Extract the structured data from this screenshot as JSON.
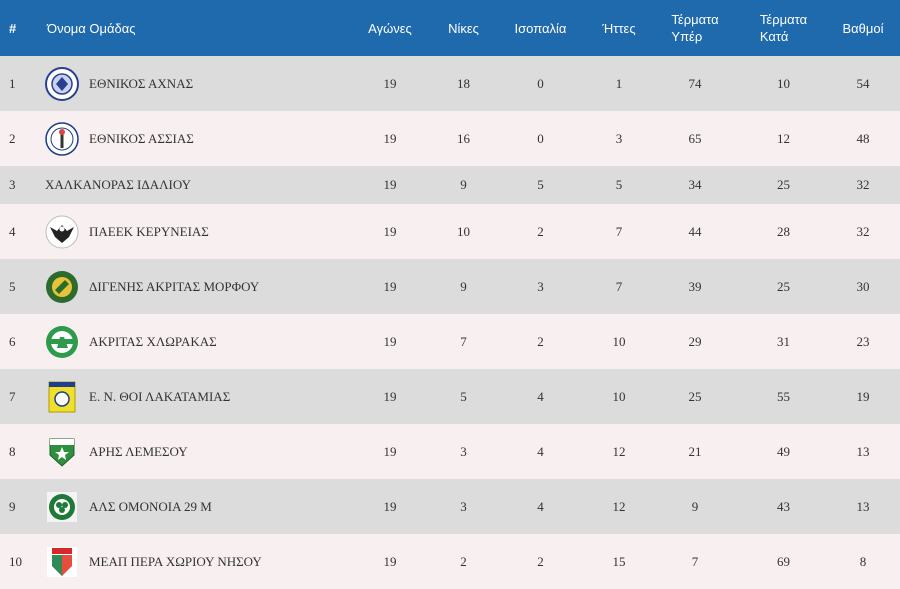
{
  "header": {
    "num": "#",
    "team": "Όνομα Ομάδας",
    "played": "Αγώνες",
    "wins": "Νίκες",
    "draws": "Ισοπαλία",
    "losses": "Ήττες",
    "goals_for_1": "Τέρματα",
    "goals_for_2": "Υπέρ",
    "goals_against_1": "Τέρματα",
    "goals_against_2": "Κατά",
    "points": "Βαθμοί"
  },
  "colors": {
    "header_bg": "#1f69ad",
    "row_odd": "#dcdcdc",
    "row_even": "#f8f0f0"
  },
  "rows": [
    {
      "pos": "1",
      "team": "ΕΘΝΙΚΟΣ ΑΧΝΑΣ",
      "played": "19",
      "wins": "18",
      "draws": "0",
      "losses": "1",
      "gf": "74",
      "ga": "10",
      "pts": "54",
      "logo": "ethnikos-achnas-crest-icon"
    },
    {
      "pos": "2",
      "team": "ΕΘΝΙΚΟΣ ΑΣΣΙΑΣ",
      "played": "19",
      "wins": "16",
      "draws": "0",
      "losses": "3",
      "gf": "65",
      "ga": "12",
      "pts": "48",
      "logo": "ethnikos-assias-crest-icon"
    },
    {
      "pos": "3",
      "team": "ΧΑΛΚΑΝΟΡΑΣ ΙΔΑΛΙΟΥ",
      "played": "19",
      "wins": "9",
      "draws": "5",
      "losses": "5",
      "gf": "34",
      "ga": "25",
      "pts": "32",
      "logo": ""
    },
    {
      "pos": "4",
      "team": "ΠΑΕΕΚ ΚΕΡΥΝΕΙΑΣ",
      "played": "19",
      "wins": "10",
      "draws": "2",
      "losses": "7",
      "gf": "44",
      "ga": "28",
      "pts": "32",
      "logo": "paeek-eagle-crest-icon"
    },
    {
      "pos": "5",
      "team": "ΔΙΓΕΝΗΣ ΑΚΡΙΤΑΣ ΜΟΡΦΟΥ",
      "played": "19",
      "wins": "9",
      "draws": "3",
      "losses": "7",
      "gf": "39",
      "ga": "25",
      "pts": "30",
      "logo": "digenis-morfou-crest-icon"
    },
    {
      "pos": "6",
      "team": "ΑΚΡΙΤΑΣ ΧΛΩΡΑΚΑΣ",
      "played": "19",
      "wins": "7",
      "draws": "2",
      "losses": "10",
      "gf": "29",
      "ga": "31",
      "pts": "23",
      "logo": "akritas-chlorakas-crest-icon"
    },
    {
      "pos": "7",
      "team": "Ε. Ν. ΘΟΙ ΛΑΚΑΤΑΜΙΑΣ",
      "played": "19",
      "wins": "5",
      "draws": "4",
      "losses": "10",
      "gf": "25",
      "ga": "55",
      "pts": "19",
      "logo": "thoi-lakatamias-crest-icon"
    },
    {
      "pos": "8",
      "team": "ΑΡΗΣ ΛΕΜΕΣΟΥ",
      "played": "19",
      "wins": "3",
      "draws": "4",
      "losses": "12",
      "gf": "21",
      "ga": "49",
      "pts": "13",
      "logo": "aris-limassol-crest-icon"
    },
    {
      "pos": "9",
      "team": "ΑΛΣ ΟΜΟΝΟΙΑ 29 Μ",
      "played": "19",
      "wins": "3",
      "draws": "4",
      "losses": "12",
      "gf": "9",
      "ga": "43",
      "pts": "13",
      "logo": "als-omonia-crest-icon"
    },
    {
      "pos": "10",
      "team": "ΜΕΑΠ ΠΕΡΑ ΧΩΡΙΟΥ ΝΗΣΟΥ",
      "played": "19",
      "wins": "2",
      "draws": "2",
      "losses": "15",
      "gf": "7",
      "ga": "69",
      "pts": "8",
      "logo": "meap-crest-icon"
    }
  ]
}
